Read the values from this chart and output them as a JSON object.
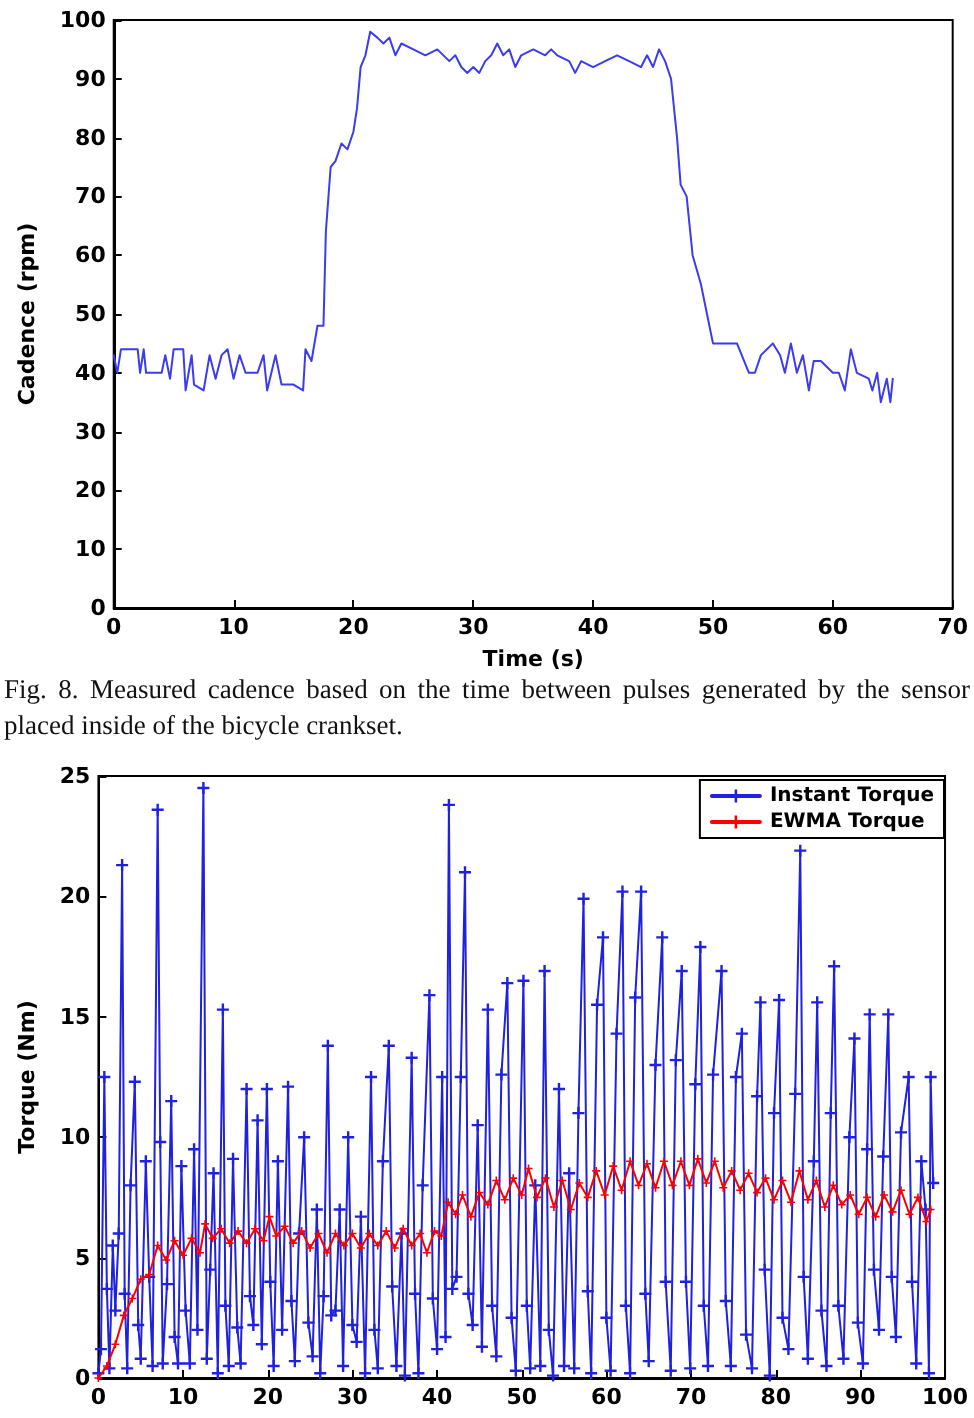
{
  "chart_data": [
    {
      "type": "line",
      "xlabel": "Time (s)",
      "ylabel": "Cadence (rpm)",
      "xlim": [
        0,
        70
      ],
      "xticks": [
        0,
        10,
        20,
        30,
        40,
        50,
        60,
        70
      ],
      "ylim": [
        0,
        100
      ],
      "yticks": [
        0,
        10,
        20,
        30,
        40,
        50,
        60,
        70,
        80,
        90,
        100
      ],
      "grid": false,
      "legend": false,
      "marker": "none",
      "annotations": [
        "Fig. 8.  Measured cadence based on the time between pulses generated by the sensor placed inside of the bicycle crankset."
      ],
      "series": [
        {
          "color": "#3b3bf0",
          "x": [
            0,
            0.3,
            0.6,
            2,
            2.2,
            2.5,
            2.7,
            4,
            4.3,
            4.7,
            5,
            5.8,
            6,
            6.5,
            6.7,
            7.5,
            8,
            8.5,
            9,
            9.5,
            10,
            10.5,
            11,
            12,
            12.5,
            12.8,
            13.5,
            14,
            15,
            15.8,
            16,
            16.5,
            17,
            17.5,
            17.7,
            18.1,
            18.5,
            19,
            19.5,
            20,
            20.3,
            20.6,
            21,
            21.4,
            22,
            22.5,
            23,
            23.5,
            24,
            25,
            26,
            27,
            28,
            28.5,
            29,
            29.5,
            30,
            30.5,
            31,
            31.5,
            32,
            32.5,
            33,
            33.5,
            34,
            35,
            36,
            36.5,
            37,
            38,
            38.5,
            39,
            40,
            41,
            42,
            43,
            44,
            44.5,
            45,
            45.5,
            46,
            46.5,
            47,
            47.3,
            47.8,
            48.3,
            49,
            49.5,
            50,
            51,
            52,
            53,
            53.5,
            54,
            55,
            55.6,
            56,
            56.5,
            57,
            57.5,
            58,
            58.4,
            59,
            60,
            60.5,
            61,
            61.5,
            62,
            63,
            63.3,
            63.7,
            64,
            64.5,
            64.8,
            65
          ],
          "values": [
            43,
            40,
            44,
            44,
            40,
            44,
            40,
            40,
            43,
            39,
            44,
            44,
            37,
            43,
            38,
            37,
            43,
            39,
            43,
            44,
            39,
            43,
            40,
            40,
            43,
            37,
            43,
            38,
            38,
            37,
            44,
            42,
            48,
            48,
            64,
            75,
            76,
            79,
            78,
            81,
            85,
            92,
            94,
            98,
            97,
            96,
            97,
            94,
            96,
            95,
            94,
            95,
            93,
            94,
            92,
            91,
            92,
            91,
            93,
            94,
            96,
            94,
            95,
            92,
            94,
            95,
            94,
            95,
            94,
            93,
            91,
            93,
            92,
            93,
            94,
            93,
            92,
            94,
            92,
            95,
            93,
            90,
            80,
            72,
            70,
            60,
            55,
            50,
            45,
            45,
            45,
            40,
            40,
            43,
            45,
            43,
            40,
            45,
            40,
            43,
            37,
            42,
            42,
            40,
            40,
            37,
            44,
            40,
            39,
            37,
            40,
            35,
            39,
            35,
            39
          ]
        }
      ]
    },
    {
      "type": "line",
      "ylabel": "Torque (Nm)",
      "xlim": [
        0,
        100
      ],
      "xticks": [
        0,
        10,
        20,
        30,
        40,
        50,
        60,
        70,
        80,
        90,
        100
      ],
      "ylim": [
        0,
        25
      ],
      "yticks": [
        0,
        5,
        10,
        15,
        20,
        25
      ],
      "grid": false,
      "legend": "top right",
      "marker": "cross",
      "series": [
        {
          "name": "Instant Torque",
          "color": "#2020e0",
          "x": [
            0,
            0.3,
            0.7,
            1.0,
            1.3,
            1.7,
            2.0,
            2.4,
            2.8,
            3.1,
            3.4,
            3.8,
            4.3,
            4.7,
            5.0,
            5.6,
            6.0,
            6.4,
            7.0,
            7.3,
            7.6,
            8.1,
            8.6,
            9.0,
            9.4,
            9.8,
            10.3,
            10.8,
            11.3,
            11.7,
            12.4,
            12.8,
            13.2,
            13.6,
            14.1,
            14.7,
            15.0,
            15.4,
            15.9,
            16.4,
            16.8,
            17.5,
            17.9,
            18.3,
            18.8,
            19.3,
            19.9,
            20.3,
            20.7,
            21.2,
            21.7,
            22.4,
            22.8,
            23.2,
            23.7,
            24.3,
            24.8,
            25.3,
            25.8,
            26.2,
            26.6,
            27.1,
            27.5,
            28.0,
            28.5,
            28.9,
            29.5,
            30.0,
            30.5,
            31.0,
            31.5,
            32.2,
            32.6,
            33.0,
            33.6,
            34.3,
            34.7,
            35.2,
            35.8,
            36.2,
            37.0,
            37.4,
            37.8,
            38.3,
            39.1,
            39.5,
            40.0,
            40.6,
            41.0,
            41.4,
            41.8,
            42.3,
            42.8,
            43.3,
            43.7,
            44.2,
            44.8,
            45.3,
            46.0,
            46.5,
            47.0,
            47.6,
            48.3,
            48.8,
            49.3,
            50.2,
            50.6,
            51.0,
            51.6,
            52.2,
            52.7,
            53.2,
            53.7,
            54.4,
            55.0,
            55.6,
            56.2,
            56.7,
            57.3,
            57.8,
            58.2,
            58.9,
            59.6,
            60.0,
            60.5,
            61.2,
            61.9,
            62.3,
            62.8,
            63.4,
            64.1,
            64.6,
            65.0,
            65.8,
            66.6,
            67.0,
            67.6,
            68.2,
            68.9,
            69.4,
            69.9,
            70.5,
            71.1,
            71.5,
            72.0,
            72.6,
            73.6,
            74.1,
            74.7,
            75.3,
            76.0,
            76.5,
            77.2,
            77.8,
            78.2,
            78.7,
            79.3,
            79.8,
            80.4,
            80.8,
            81.5,
            82.3,
            82.9,
            83.3,
            83.8,
            84.5,
            84.9,
            85.4,
            86.0,
            86.5,
            86.9,
            87.4,
            88.0,
            88.7,
            89.3,
            89.7,
            90.3,
            90.8,
            91.1,
            91.6,
            92.2,
            92.7,
            93.3,
            93.7,
            94.2,
            94.8,
            95.7,
            96.1,
            96.6,
            97.2,
            97.7,
            98.1,
            98.3,
            98.6
          ],
          "values": [
            0.2,
            1.2,
            12.5,
            3.7,
            0.4,
            5.5,
            2.8,
            6,
            21.3,
            3.5,
            0.4,
            8,
            12.3,
            2.2,
            0.8,
            9,
            4.2,
            0.5,
            23.6,
            9.8,
            0.6,
            3.9,
            11.5,
            1.7,
            0.6,
            8.8,
            2.8,
            0.6,
            9.5,
            2.0,
            24.5,
            0.8,
            4.5,
            8.5,
            0.2,
            15.3,
            3,
            0.5,
            9.1,
            2.1,
            0.6,
            12,
            3.4,
            2.2,
            10.7,
            1.4,
            12,
            4,
            0.5,
            9,
            2,
            12.1,
            3.2,
            0.7,
            6,
            10,
            2.3,
            0.9,
            7,
            0.2,
            3.4,
            13.8,
            2.6,
            2.8,
            7,
            0.5,
            10,
            2.2,
            1.5,
            6.7,
            0.2,
            12.5,
            2,
            0.4,
            9,
            13.8,
            3.8,
            0.5,
            6,
            0.1,
            13.3,
            3.5,
            0.2,
            8,
            15.9,
            3.3,
            1.2,
            12.5,
            1.7,
            23.8,
            3.7,
            4.2,
            12.5,
            21,
            3.5,
            2.2,
            10.5,
            1.3,
            15.3,
            3,
            0.9,
            12.6,
            16.4,
            2.5,
            0.3,
            16.5,
            3,
            0.4,
            8,
            0.5,
            16.9,
            2,
            0.1,
            12,
            0.5,
            8.5,
            0.4,
            11,
            19.9,
            3.6,
            0.2,
            15.5,
            18.3,
            2.5,
            0.3,
            14.3,
            20.2,
            3,
            0.2,
            15.8,
            20.2,
            3.5,
            0.7,
            13,
            18.3,
            4,
            0.3,
            13.2,
            16.9,
            4,
            0.4,
            12.2,
            17.9,
            3,
            0.5,
            12.6,
            16.9,
            3.2,
            0.5,
            12.5,
            14.3,
            1.8,
            0.4,
            11.7,
            15.6,
            4.5,
            0.1,
            11,
            15.7,
            2.5,
            1.2,
            11.8,
            21.9,
            4.2,
            0.8,
            9,
            15.6,
            2.8,
            0.5,
            11,
            17.1,
            3,
            0.8,
            10,
            14.1,
            2.3,
            0.6,
            9.5,
            15.1,
            4.5,
            2,
            9.2,
            15.1,
            4.2,
            1.7,
            10.2,
            12.5,
            4,
            0.6,
            9,
            7,
            0.2,
            12.5,
            8.1
          ]
        },
        {
          "name": "EWMA Torque",
          "color": "#ff0000",
          "x": [
            0,
            1,
            2,
            3,
            4,
            5,
            6,
            7,
            8,
            9,
            10,
            11,
            12,
            12.6,
            13.5,
            14.5,
            15.5,
            16.5,
            17.5,
            18.5,
            19.5,
            20.2,
            21,
            22,
            23,
            24,
            25,
            26,
            27,
            28,
            29,
            30,
            31,
            32,
            33,
            34,
            35,
            36,
            37,
            38,
            38.8,
            39.7,
            40.5,
            41.3,
            42.2,
            43,
            44,
            45,
            46,
            47,
            48,
            49,
            50,
            50.8,
            51.8,
            52.8,
            53.8,
            54.8,
            55.8,
            56.8,
            57.8,
            58.8,
            59.8,
            60.8,
            61.8,
            62.8,
            63.8,
            64.8,
            65.8,
            66.8,
            67.8,
            68.8,
            69.8,
            70.8,
            71.8,
            72.8,
            73.8,
            74.8,
            75.8,
            76.8,
            77.8,
            78.8,
            79.8,
            80.8,
            81.8,
            82.8,
            83.8,
            84.8,
            85.8,
            86.8,
            87.8,
            88.8,
            89.8,
            90.8,
            91.8,
            92.8,
            93.8,
            94.8,
            95.8,
            96.8,
            97.8,
            98.3
          ],
          "values": [
            0,
            0.5,
            1.4,
            2.6,
            3.3,
            4.1,
            4.3,
            5.5,
            4.9,
            5.7,
            5.1,
            5.8,
            5.2,
            6.4,
            5.8,
            6.2,
            5.6,
            6.1,
            5.6,
            6.2,
            5.7,
            6.7,
            5.9,
            6.3,
            5.6,
            6.1,
            5.4,
            6.0,
            5.2,
            6.0,
            5.5,
            6.0,
            5.4,
            6.0,
            5.5,
            6.1,
            5.4,
            6.2,
            5.5,
            6.0,
            5.2,
            6.1,
            5.9,
            7.3,
            6.8,
            7.6,
            6.7,
            7.7,
            7.2,
            8.2,
            7.4,
            8.3,
            7.6,
            8.7,
            7.5,
            8.3,
            7.1,
            8.2,
            7.0,
            8.1,
            7.5,
            8.6,
            7.6,
            8.8,
            7.8,
            9.0,
            8.0,
            8.9,
            7.9,
            9.0,
            8.0,
            9.0,
            8.0,
            9.1,
            8.1,
            9.0,
            7.9,
            8.6,
            7.8,
            8.5,
            7.7,
            8.3,
            7.4,
            8.2,
            7.3,
            8.6,
            7.4,
            8.2,
            7.1,
            8.0,
            7.2,
            7.6,
            6.8,
            7.5,
            6.7,
            7.6,
            6.9,
            7.8,
            6.8,
            7.5,
            6.5,
            7.0
          ]
        }
      ]
    }
  ]
}
